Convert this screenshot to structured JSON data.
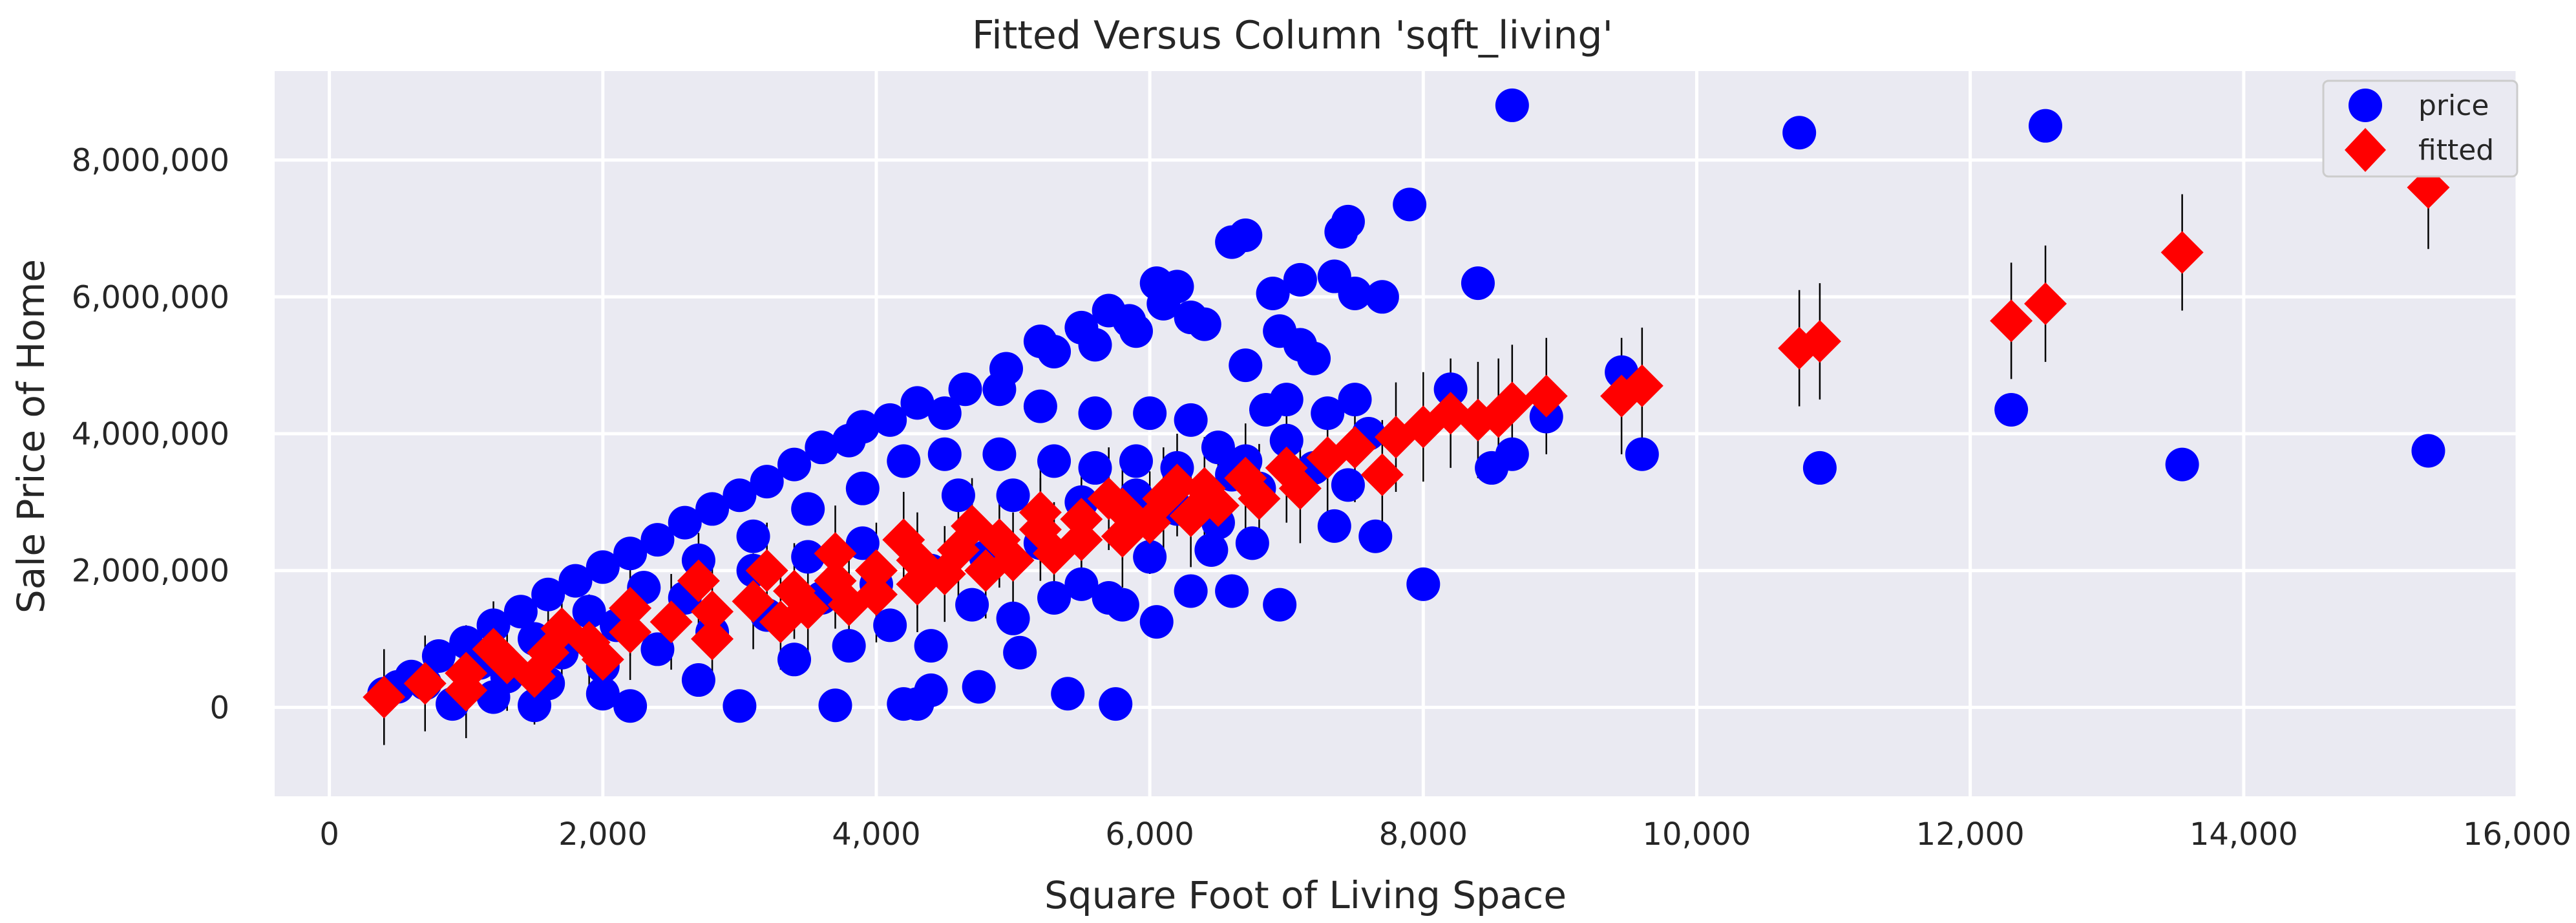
{
  "chart_data": {
    "type": "scatter",
    "title": "Fitted Versus Column 'sqft_living'",
    "xlabel": "Square Foot of Living Space",
    "ylabel": "Sale Price of Home",
    "xlim": [
      -400,
      16000
    ],
    "ylim": [
      -1300000,
      9300000
    ],
    "grid": true,
    "legend_position": "top-right",
    "x_ticks": [
      0,
      2000,
      4000,
      6000,
      8000,
      10000,
      12000,
      14000,
      16000
    ],
    "x_tick_labels": [
      "0",
      "2,000",
      "4,000",
      "6,000",
      "8,000",
      "10,000",
      "12,000",
      "14,000",
      "16,000"
    ],
    "y_ticks": [
      0,
      2000000,
      4000000,
      6000000,
      8000000
    ],
    "y_tick_labels": [
      "0",
      "2,000,000",
      "4,000,000",
      "6,000,000",
      "8,000,000"
    ],
    "colors": {
      "price": "#0000ff",
      "fitted": "#ff0000",
      "error_bar": "#000000",
      "background": "#eaeaf2",
      "grid": "#ffffff"
    },
    "series": [
      {
        "name": "price",
        "marker": "circle",
        "color": "#0000ff",
        "points": [
          [
            8650,
            8800000
          ],
          [
            10750,
            8400000
          ],
          [
            12550,
            8500000
          ],
          [
            7900,
            7350000
          ],
          [
            7450,
            7100000
          ],
          [
            7400,
            6950000
          ],
          [
            6700,
            6900000
          ],
          [
            6600,
            6800000
          ],
          [
            8400,
            6200000
          ],
          [
            6050,
            6200000
          ],
          [
            6200,
            6150000
          ],
          [
            6900,
            6050000
          ],
          [
            7100,
            6250000
          ],
          [
            7350,
            6300000
          ],
          [
            7500,
            6050000
          ],
          [
            7700,
            6000000
          ],
          [
            5200,
            5350000
          ],
          [
            5700,
            5800000
          ],
          [
            5500,
            5550000
          ],
          [
            5850,
            5650000
          ],
          [
            6300,
            5700000
          ],
          [
            7100,
            5300000
          ],
          [
            6950,
            5500000
          ],
          [
            4950,
            4950000
          ],
          [
            9450,
            4900000
          ],
          [
            8200,
            4650000
          ],
          [
            7500,
            4500000
          ],
          [
            7000,
            4500000
          ],
          [
            6850,
            4350000
          ],
          [
            8650,
            3700000
          ],
          [
            8500,
            3500000
          ],
          [
            8900,
            4250000
          ],
          [
            9600,
            3700000
          ],
          [
            10900,
            3500000
          ],
          [
            12300,
            4350000
          ],
          [
            13550,
            3550000
          ],
          [
            15350,
            3750000
          ],
          [
            7450,
            3250000
          ],
          [
            7350,
            2650000
          ],
          [
            7650,
            2500000
          ],
          [
            6750,
            2400000
          ],
          [
            6450,
            2300000
          ],
          [
            6600,
            1700000
          ],
          [
            6950,
            1500000
          ],
          [
            8000,
            1800000
          ],
          [
            6050,
            1250000
          ],
          [
            5800,
            1500000
          ],
          [
            5050,
            800000
          ],
          [
            4750,
            300000
          ],
          [
            5400,
            200000
          ],
          [
            5750,
            50000
          ],
          [
            4200,
            50000
          ],
          [
            4400,
            250000
          ],
          [
            4650,
            4650000
          ],
          [
            4300,
            4450000
          ],
          [
            3900,
            4100000
          ],
          [
            3600,
            3800000
          ],
          [
            3200,
            3300000
          ],
          [
            2800,
            2900000
          ],
          [
            2400,
            2450000
          ],
          [
            2000,
            2050000
          ],
          [
            1600,
            1650000
          ],
          [
            1200,
            1200000
          ],
          [
            800,
            750000
          ],
          [
            500,
            300000
          ],
          [
            400,
            200000
          ],
          [
            600,
            450000
          ],
          [
            1000,
            950000
          ],
          [
            1400,
            1400000
          ],
          [
            1800,
            1850000
          ],
          [
            2200,
            2250000
          ],
          [
            2600,
            2700000
          ],
          [
            3000,
            3100000
          ],
          [
            3400,
            3550000
          ],
          [
            3800,
            3900000
          ],
          [
            4100,
            4200000
          ],
          [
            4500,
            4300000
          ],
          [
            4900,
            4650000
          ],
          [
            5200,
            4400000
          ],
          [
            5600,
            4300000
          ],
          [
            6000,
            4300000
          ],
          [
            6300,
            4200000
          ],
          [
            6500,
            3800000
          ],
          [
            4200,
            3600000
          ],
          [
            3900,
            3200000
          ],
          [
            3500,
            2900000
          ],
          [
            3100,
            2500000
          ],
          [
            2700,
            2150000
          ],
          [
            2300,
            1750000
          ],
          [
            1900,
            1400000
          ],
          [
            1500,
            1000000
          ],
          [
            1100,
            650000
          ],
          [
            700,
            350000
          ],
          [
            4600,
            3100000
          ],
          [
            5000,
            3100000
          ],
          [
            5500,
            3000000
          ],
          [
            5900,
            3100000
          ],
          [
            6200,
            2900000
          ],
          [
            6500,
            2700000
          ],
          [
            5200,
            2400000
          ],
          [
            4800,
            2200000
          ],
          [
            4400,
            2000000
          ],
          [
            4000,
            1800000
          ],
          [
            3600,
            1600000
          ],
          [
            3200,
            1350000
          ],
          [
            2800,
            1100000
          ],
          [
            2400,
            850000
          ],
          [
            2000,
            600000
          ],
          [
            1600,
            350000
          ],
          [
            1200,
            150000
          ],
          [
            900,
            50000
          ],
          [
            1500,
            30000
          ],
          [
            2200,
            20000
          ],
          [
            3000,
            20000
          ],
          [
            3700,
            30000
          ],
          [
            4300,
            50000
          ],
          [
            3800,
            900000
          ],
          [
            4400,
            900000
          ],
          [
            5000,
            1300000
          ],
          [
            5500,
            1800000
          ],
          [
            6000,
            2200000
          ],
          [
            6300,
            1700000
          ],
          [
            5700,
            1600000
          ],
          [
            5300,
            1600000
          ],
          [
            4700,
            1500000
          ],
          [
            4100,
            1200000
          ],
          [
            3400,
            700000
          ],
          [
            2700,
            400000
          ],
          [
            2000,
            200000
          ],
          [
            6700,
            3600000
          ],
          [
            7000,
            3900000
          ],
          [
            7300,
            4300000
          ],
          [
            7600,
            4000000
          ],
          [
            7200,
            3500000
          ],
          [
            6800,
            3200000
          ],
          [
            6600,
            3400000
          ],
          [
            3900,
            2400000
          ],
          [
            3500,
            2200000
          ],
          [
            3100,
            2000000
          ],
          [
            2600,
            1600000
          ],
          [
            2100,
            1200000
          ],
          [
            1700,
            800000
          ],
          [
            1300,
            450000
          ],
          [
            4500,
            3700000
          ],
          [
            4900,
            3700000
          ],
          [
            5300,
            3600000
          ],
          [
            5600,
            3500000
          ],
          [
            5900,
            3600000
          ],
          [
            6200,
            3500000
          ],
          [
            6100,
            5900000
          ],
          [
            5300,
            5200000
          ],
          [
            5600,
            5300000
          ],
          [
            5900,
            5500000
          ],
          [
            6400,
            5600000
          ],
          [
            6700,
            5000000
          ],
          [
            7200,
            5100000
          ]
        ]
      },
      {
        "name": "fitted",
        "marker": "diamond",
        "color": "#ff0000",
        "points": [
          [
            15350,
            7600000,
            900000
          ],
          [
            13550,
            6650000,
            850000
          ],
          [
            12550,
            5900000,
            850000
          ],
          [
            12300,
            5650000,
            850000
          ],
          [
            10900,
            5350000,
            850000
          ],
          [
            10750,
            5250000,
            850000
          ],
          [
            9600,
            4700000,
            850000
          ],
          [
            9450,
            4550000,
            850000
          ],
          [
            8900,
            4550000,
            850000
          ],
          [
            8650,
            4450000,
            850000
          ],
          [
            8550,
            4250000,
            850000
          ],
          [
            8400,
            4200000,
            850000
          ],
          [
            8200,
            4300000,
            800000
          ],
          [
            8000,
            4100000,
            800000
          ],
          [
            7800,
            3950000,
            800000
          ],
          [
            7700,
            3400000,
            800000
          ],
          [
            7500,
            3800000,
            800000
          ],
          [
            7300,
            3650000,
            800000
          ],
          [
            7000,
            3500000,
            800000
          ],
          [
            6700,
            3350000,
            800000
          ],
          [
            6400,
            3200000,
            750000
          ],
          [
            6100,
            3050000,
            750000
          ],
          [
            5800,
            2900000,
            750000
          ],
          [
            5500,
            2750000,
            750000
          ],
          [
            5200,
            2600000,
            750000
          ],
          [
            4900,
            2450000,
            700000
          ],
          [
            4600,
            2300000,
            700000
          ],
          [
            4300,
            2150000,
            700000
          ],
          [
            4000,
            2000000,
            700000
          ],
          [
            3700,
            1850000,
            700000
          ],
          [
            3400,
            1700000,
            700000
          ],
          [
            3100,
            1550000,
            700000
          ],
          [
            2800,
            1400000,
            700000
          ],
          [
            2500,
            1250000,
            700000
          ],
          [
            2200,
            1100000,
            700000
          ],
          [
            1900,
            950000,
            700000
          ],
          [
            1600,
            800000,
            700000
          ],
          [
            1300,
            650000,
            700000
          ],
          [
            1000,
            500000,
            700000
          ],
          [
            700,
            350000,
            700000
          ],
          [
            400,
            150000,
            700000
          ],
          [
            2700,
            1850000,
            700000
          ],
          [
            3200,
            2000000,
            700000
          ],
          [
            3700,
            2250000,
            700000
          ],
          [
            4200,
            2450000,
            700000
          ],
          [
            4700,
            2650000,
            700000
          ],
          [
            5200,
            2850000,
            750000
          ],
          [
            5700,
            3050000,
            750000
          ],
          [
            6200,
            3250000,
            750000
          ],
          [
            2200,
            1450000,
            700000
          ],
          [
            1700,
            1150000,
            700000
          ],
          [
            1200,
            850000,
            700000
          ],
          [
            3500,
            1450000,
            700000
          ],
          [
            4000,
            1650000,
            700000
          ],
          [
            4500,
            1950000,
            700000
          ],
          [
            5000,
            2150000,
            700000
          ],
          [
            5500,
            2450000,
            750000
          ],
          [
            6000,
            2700000,
            750000
          ],
          [
            6500,
            2950000,
            750000
          ],
          [
            7100,
            3200000,
            800000
          ],
          [
            2000,
            700000,
            700000
          ],
          [
            1500,
            450000,
            700000
          ],
          [
            1000,
            250000,
            700000
          ],
          [
            2800,
            1000000,
            700000
          ],
          [
            3300,
            1250000,
            700000
          ],
          [
            3800,
            1500000,
            700000
          ],
          [
            4300,
            1800000,
            700000
          ],
          [
            4800,
            2000000,
            700000
          ],
          [
            5300,
            2250000,
            750000
          ],
          [
            5800,
            2500000,
            750000
          ],
          [
            6300,
            2800000,
            750000
          ],
          [
            6800,
            3050000,
            800000
          ]
        ]
      }
    ]
  }
}
